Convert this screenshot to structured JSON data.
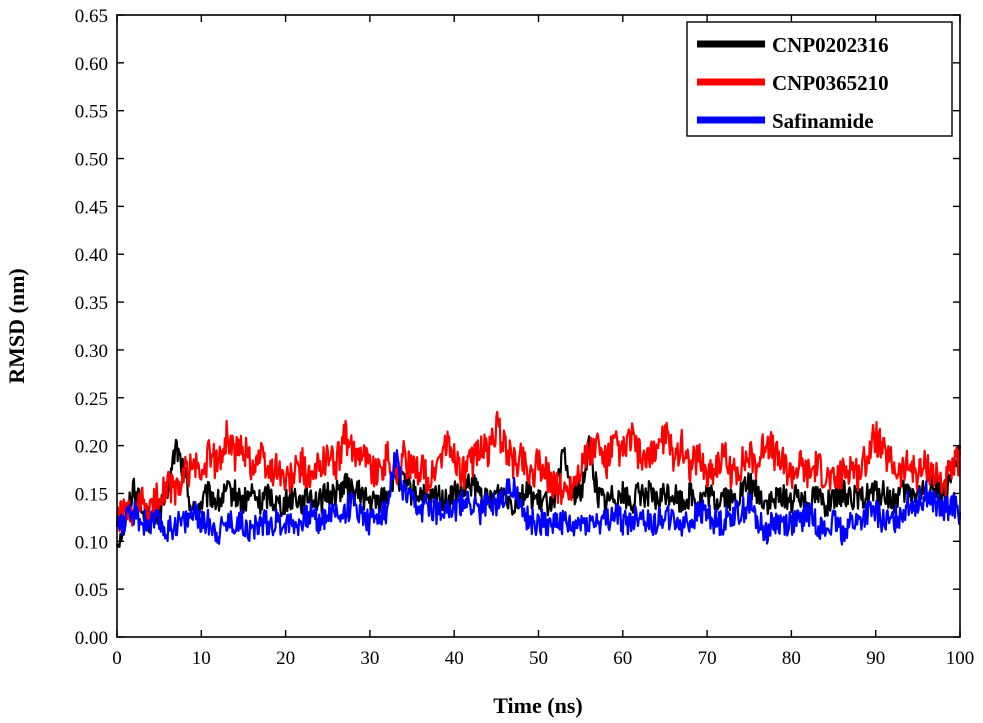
{
  "chart_data": {
    "type": "line",
    "xlabel": "Time (ns)",
    "ylabel": "RMSD (nm)",
    "xlim": [
      0,
      100
    ],
    "ylim": [
      0,
      0.65
    ],
    "xticks": [
      0,
      10,
      20,
      30,
      40,
      50,
      60,
      70,
      80,
      90,
      100
    ],
    "xtick_labels": [
      "0",
      "10",
      "20",
      "30",
      "40",
      "50",
      "60",
      "70",
      "80",
      "90",
      "100"
    ],
    "yticks": [
      0,
      0.05,
      0.1,
      0.15,
      0.2,
      0.25,
      0.3,
      0.35,
      0.4,
      0.45,
      0.5,
      0.55,
      0.6,
      0.65
    ],
    "ytick_labels": [
      "0.00",
      "0.05",
      "0.10",
      "0.15",
      "0.20",
      "0.25",
      "0.30",
      "0.35",
      "0.40",
      "0.45",
      "0.50",
      "0.55",
      "0.60",
      "0.65"
    ],
    "grid": false,
    "legend_position": "top-right",
    "x": [
      0,
      1,
      2,
      3,
      4,
      5,
      6,
      7,
      8,
      9,
      10,
      11,
      12,
      13,
      14,
      15,
      16,
      17,
      18,
      19,
      20,
      21,
      22,
      23,
      24,
      25,
      26,
      27,
      28,
      29,
      30,
      31,
      32,
      33,
      34,
      35,
      36,
      37,
      38,
      39,
      40,
      41,
      42,
      43,
      44,
      45,
      46,
      47,
      48,
      49,
      50,
      51,
      52,
      53,
      54,
      55,
      56,
      57,
      58,
      59,
      60,
      61,
      62,
      63,
      64,
      65,
      66,
      67,
      68,
      69,
      70,
      71,
      72,
      73,
      74,
      75,
      76,
      77,
      78,
      79,
      80,
      81,
      82,
      83,
      84,
      85,
      86,
      87,
      88,
      89,
      90,
      91,
      92,
      93,
      94,
      95,
      96,
      97,
      98,
      99,
      100
    ],
    "series": [
      {
        "name": "CNP0202316",
        "color": "#000000",
        "values": [
          0.1,
          0.12,
          0.16,
          0.13,
          0.12,
          0.13,
          0.15,
          0.2,
          0.17,
          0.13,
          0.14,
          0.15,
          0.14,
          0.15,
          0.15,
          0.14,
          0.15,
          0.14,
          0.15,
          0.14,
          0.14,
          0.15,
          0.14,
          0.15,
          0.14,
          0.15,
          0.15,
          0.16,
          0.15,
          0.15,
          0.14,
          0.14,
          0.15,
          0.17,
          0.16,
          0.15,
          0.15,
          0.14,
          0.15,
          0.14,
          0.15,
          0.15,
          0.16,
          0.15,
          0.14,
          0.15,
          0.15,
          0.14,
          0.15,
          0.15,
          0.14,
          0.14,
          0.15,
          0.19,
          0.15,
          0.15,
          0.2,
          0.15,
          0.14,
          0.15,
          0.15,
          0.14,
          0.15,
          0.15,
          0.14,
          0.15,
          0.15,
          0.14,
          0.15,
          0.14,
          0.15,
          0.14,
          0.15,
          0.14,
          0.15,
          0.16,
          0.15,
          0.14,
          0.14,
          0.15,
          0.14,
          0.15,
          0.14,
          0.15,
          0.14,
          0.14,
          0.15,
          0.15,
          0.14,
          0.15,
          0.15,
          0.15,
          0.14,
          0.15,
          0.15,
          0.15,
          0.15,
          0.16,
          0.15,
          0.16,
          0.2
        ]
      },
      {
        "name": "CNP0365210",
        "color": "#ff0000",
        "values": [
          0.12,
          0.13,
          0.12,
          0.14,
          0.13,
          0.15,
          0.16,
          0.15,
          0.17,
          0.18,
          0.17,
          0.19,
          0.18,
          0.21,
          0.19,
          0.2,
          0.18,
          0.19,
          0.17,
          0.18,
          0.16,
          0.17,
          0.18,
          0.16,
          0.18,
          0.19,
          0.18,
          0.21,
          0.19,
          0.2,
          0.18,
          0.17,
          0.19,
          0.17,
          0.19,
          0.17,
          0.18,
          0.16,
          0.18,
          0.2,
          0.19,
          0.17,
          0.18,
          0.2,
          0.19,
          0.22,
          0.2,
          0.18,
          0.19,
          0.17,
          0.18,
          0.17,
          0.16,
          0.15,
          0.16,
          0.18,
          0.19,
          0.2,
          0.18,
          0.2,
          0.19,
          0.21,
          0.19,
          0.18,
          0.2,
          0.21,
          0.19,
          0.2,
          0.18,
          0.19,
          0.17,
          0.18,
          0.19,
          0.17,
          0.18,
          0.19,
          0.18,
          0.21,
          0.19,
          0.18,
          0.17,
          0.18,
          0.17,
          0.18,
          0.17,
          0.16,
          0.17,
          0.18,
          0.17,
          0.19,
          0.21,
          0.19,
          0.18,
          0.17,
          0.18,
          0.17,
          0.18,
          0.17,
          0.16,
          0.17,
          0.19
        ]
      },
      {
        "name": "Safinamide",
        "color": "#0000ff",
        "values": [
          0.12,
          0.12,
          0.13,
          0.12,
          0.12,
          0.12,
          0.11,
          0.12,
          0.12,
          0.13,
          0.12,
          0.12,
          0.11,
          0.12,
          0.12,
          0.12,
          0.11,
          0.12,
          0.12,
          0.12,
          0.12,
          0.12,
          0.12,
          0.13,
          0.12,
          0.13,
          0.13,
          0.13,
          0.14,
          0.13,
          0.12,
          0.13,
          0.13,
          0.19,
          0.15,
          0.14,
          0.13,
          0.14,
          0.13,
          0.14,
          0.13,
          0.14,
          0.14,
          0.13,
          0.14,
          0.14,
          0.15,
          0.16,
          0.13,
          0.12,
          0.12,
          0.12,
          0.12,
          0.12,
          0.11,
          0.12,
          0.12,
          0.12,
          0.12,
          0.13,
          0.12,
          0.12,
          0.13,
          0.12,
          0.12,
          0.13,
          0.12,
          0.12,
          0.12,
          0.13,
          0.13,
          0.12,
          0.12,
          0.13,
          0.13,
          0.14,
          0.12,
          0.11,
          0.12,
          0.12,
          0.12,
          0.12,
          0.13,
          0.12,
          0.11,
          0.12,
          0.11,
          0.12,
          0.12,
          0.13,
          0.13,
          0.12,
          0.12,
          0.13,
          0.14,
          0.14,
          0.15,
          0.14,
          0.13,
          0.14,
          0.13
        ]
      }
    ]
  }
}
